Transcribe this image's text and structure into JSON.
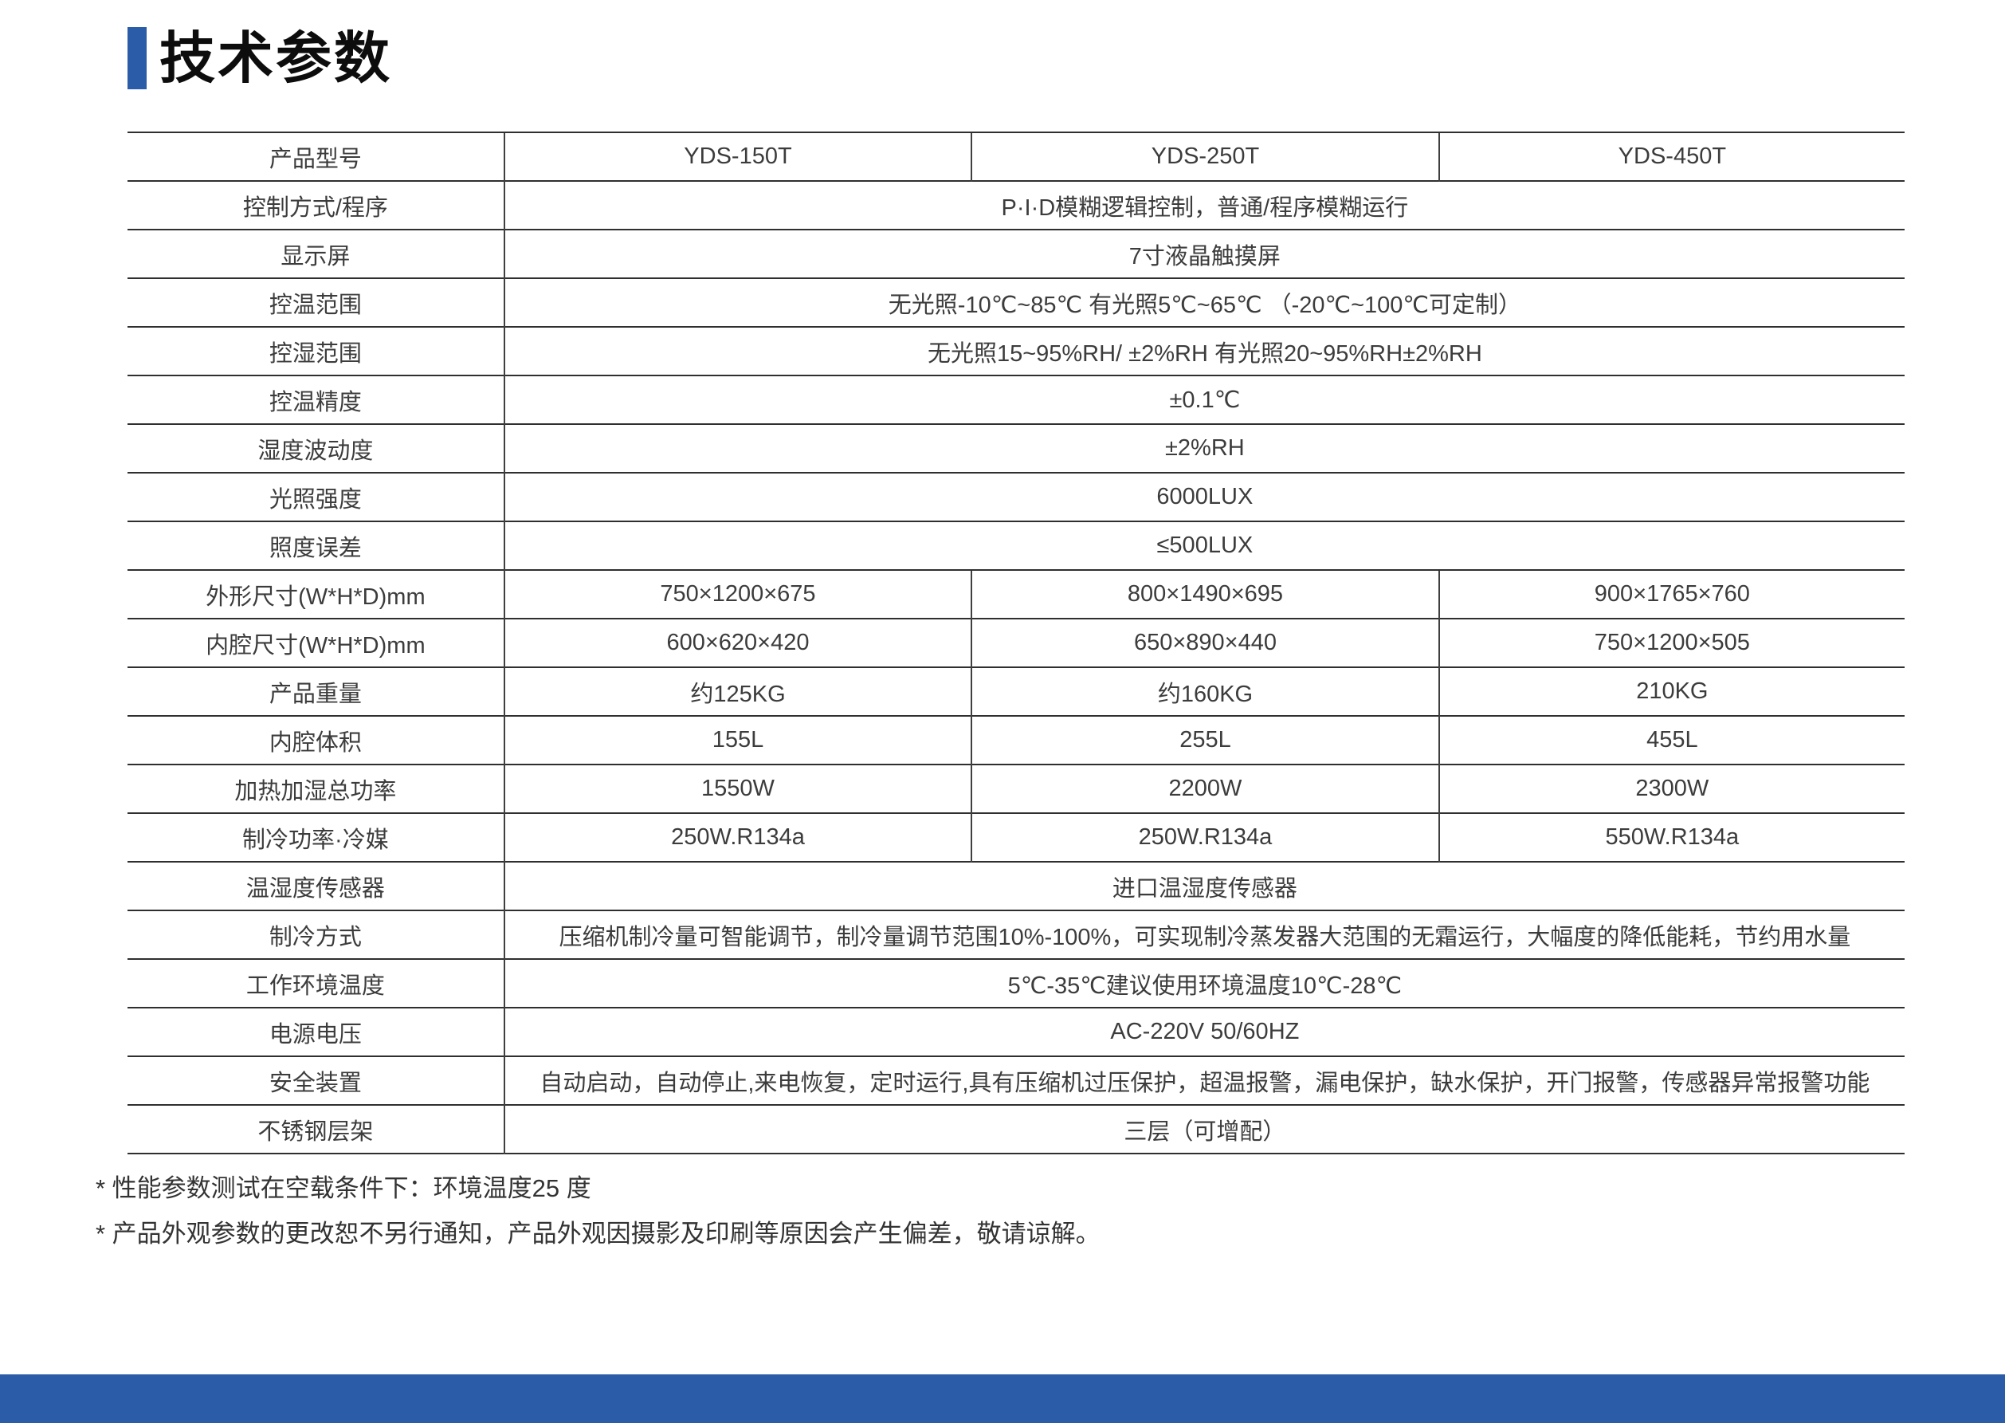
{
  "page": {
    "title": "技术参数",
    "accent_color": "#2b5ca8"
  },
  "table": {
    "rows": [
      {
        "label": "产品型号",
        "values": [
          "YDS-150T",
          "YDS-250T",
          "YDS-450T"
        ]
      },
      {
        "label": "控制方式/程序",
        "values": [
          "P·I·D模糊逻辑控制，普通/程序模糊运行"
        ]
      },
      {
        "label": "显示屏",
        "values": [
          "7寸液晶触摸屏"
        ]
      },
      {
        "label": "控温范围",
        "values": [
          "无光照-10℃~85℃ 有光照5℃~65℃ （-20℃~100℃可定制）"
        ]
      },
      {
        "label": "控湿范围",
        "values": [
          "无光照15~95%RH/ ±2%RH  有光照20~95%RH±2%RH"
        ]
      },
      {
        "label": "控温精度",
        "values": [
          "±0.1℃"
        ]
      },
      {
        "label": "湿度波动度",
        "values": [
          "±2%RH"
        ]
      },
      {
        "label": "光照强度",
        "values": [
          "6000LUX"
        ]
      },
      {
        "label": "照度误差",
        "values": [
          "≤500LUX"
        ]
      },
      {
        "label": "外形尺寸(W*H*D)mm",
        "values": [
          "750×1200×675",
          "800×1490×695",
          "900×1765×760"
        ]
      },
      {
        "label": "内腔尺寸(W*H*D)mm",
        "values": [
          "600×620×420",
          "650×890×440",
          "750×1200×505"
        ]
      },
      {
        "label": "产品重量",
        "values": [
          "约125KG",
          "约160KG",
          "210KG"
        ]
      },
      {
        "label": "内腔体积",
        "values": [
          "155L",
          "255L",
          "455L"
        ]
      },
      {
        "label": "加热加湿总功率",
        "values": [
          "1550W",
          "2200W",
          "2300W"
        ]
      },
      {
        "label": "制冷功率·冷媒",
        "values": [
          "250W.R134a",
          "250W.R134a",
          "550W.R134a"
        ]
      },
      {
        "label": "温湿度传感器",
        "values": [
          "进口温湿度传感器"
        ]
      },
      {
        "label": "制冷方式",
        "values": [
          "压缩机制冷量可智能调节，制冷量调节范围10%-100%，可实现制冷蒸发器大范围的无霜运行，大幅度的降低能耗，节约用水量"
        ]
      },
      {
        "label": "工作环境温度",
        "values": [
          "5℃-35℃建议使用环境温度10℃-28℃"
        ]
      },
      {
        "label": "电源电压",
        "values": [
          "AC-220V 50/60HZ"
        ]
      },
      {
        "label": "安全装置",
        "values": [
          "自动启动，自动停止,来电恢复，定时运行,具有压缩机过压保护，超温报警，漏电保护，缺水保护，开门报警，传感器异常报警功能"
        ]
      },
      {
        "label": "不锈钢层架",
        "values": [
          "三层（可增配）"
        ]
      }
    ]
  },
  "notes": [
    "* 性能参数测试在空载条件下：环境温度25 度",
    "* 产品外观参数的更改恕不另行通知，产品外观因摄影及印刷等原因会产生偏差，敬请谅解。"
  ]
}
